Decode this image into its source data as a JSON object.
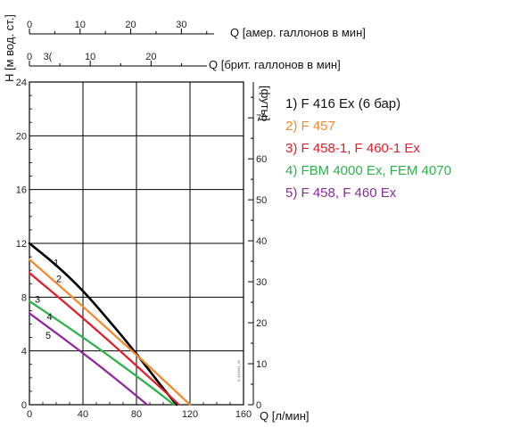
{
  "chart_data": {
    "type": "line",
    "primary_x": {
      "label": "Q [л/мин]",
      "ticks": [
        0,
        40,
        80,
        120,
        160
      ],
      "range": [
        0,
        160
      ]
    },
    "us_x": {
      "label": "Q [амер. галлонов в мин]",
      "ticks": [
        0,
        10,
        20,
        30
      ],
      "range": [
        0,
        42.27
      ]
    },
    "uk_x": {
      "label": "Q [брит. галлонов в мин]",
      "ticks": [
        0,
        10,
        20,
        "3("
      ],
      "range": [
        0,
        35.2
      ]
    },
    "left_y": {
      "label": "H [м вод. ст.]",
      "ticks": [
        0,
        4,
        8,
        12,
        16,
        20,
        24
      ],
      "range": [
        0,
        24
      ]
    },
    "right_y": {
      "label": "[футы]",
      "ticks": [
        0,
        10,
        20,
        30,
        40,
        50,
        60,
        70
      ],
      "range": [
        0,
        78.74
      ]
    },
    "grid": true,
    "legend_placement": "right",
    "series": [
      {
        "name": "1) F 416 Ex (6 бар)",
        "label": "1",
        "color": "#000000",
        "x": [
          0,
          20,
          40,
          60,
          80,
          100,
          110
        ],
        "y": [
          12,
          10.4,
          8.5,
          6.2,
          3.8,
          1.2,
          0
        ]
      },
      {
        "name": "2) F 457",
        "label": "2",
        "color": "#F28A2E",
        "x": [
          0,
          30,
          60,
          90,
          120
        ],
        "y": [
          10.8,
          8.2,
          5.5,
          2.8,
          0
        ]
      },
      {
        "name": "3) F 458-1, F 460-1 Ex",
        "label": "3",
        "color": "#E0202A",
        "x": [
          0,
          30,
          60,
          90,
          112
        ],
        "y": [
          9.8,
          7.3,
          4.7,
          2.0,
          0
        ]
      },
      {
        "name": "4) FBM 4000 Ex, FEM 4070",
        "label": "4",
        "color": "#2DB34A",
        "x": [
          0,
          30,
          60,
          90,
          108
        ],
        "y": [
          7.7,
          5.7,
          3.6,
          1.4,
          0
        ]
      },
      {
        "name": "5) F 458, F 460 Ex",
        "label": "5",
        "color": "#8E2A9C",
        "x": [
          0,
          30,
          60,
          88
        ],
        "y": [
          6.8,
          4.6,
          2.3,
          0
        ]
      }
    ],
    "code_text": "E-426003_00"
  }
}
